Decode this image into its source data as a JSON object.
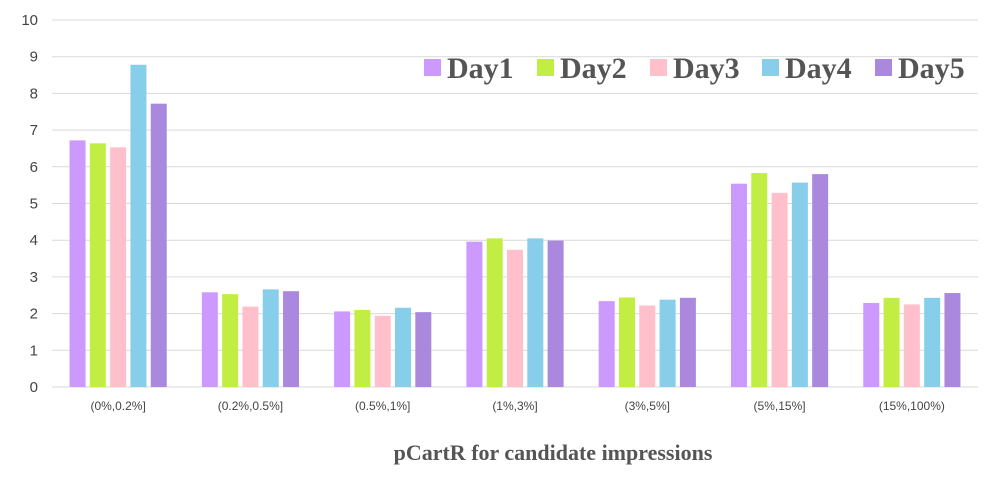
{
  "chart_data": {
    "type": "bar",
    "title": "",
    "xlabel": "pCartR for candidate impressions",
    "ylabel": "",
    "ylim": [
      0,
      10
    ],
    "yticks": [
      "0",
      "1",
      "2",
      "3",
      "4",
      "5",
      "6",
      "7",
      "8",
      "9",
      "10"
    ],
    "grid": true,
    "legend_position": "top-right",
    "categories": [
      "(0%,0.2%]",
      "(0.2%,0.5%]",
      "(0.5%,1%]",
      "(1%,3%]",
      "(3%,5%]",
      "(5%,15%]",
      "(15%,100%)"
    ],
    "series": [
      {
        "name": "Day1",
        "color": "#cc99ff",
        "values": [
          6.72,
          2.58,
          2.06,
          3.96,
          2.34,
          5.54,
          2.29
        ]
      },
      {
        "name": "Day2",
        "color": "#c2ee44",
        "values": [
          6.64,
          2.53,
          2.1,
          4.05,
          2.44,
          5.83,
          2.43
        ]
      },
      {
        "name": "Day3",
        "color": "#ffc0cb",
        "values": [
          6.53,
          2.19,
          1.94,
          3.74,
          2.22,
          5.29,
          2.25
        ]
      },
      {
        "name": "Day4",
        "color": "#87ceeb",
        "values": [
          8.78,
          2.66,
          2.16,
          4.05,
          2.38,
          5.57,
          2.43
        ]
      },
      {
        "name": "Day5",
        "color": "#aa88dd",
        "values": [
          7.72,
          2.61,
          2.04,
          3.99,
          2.43,
          5.8,
          2.56
        ]
      }
    ]
  }
}
